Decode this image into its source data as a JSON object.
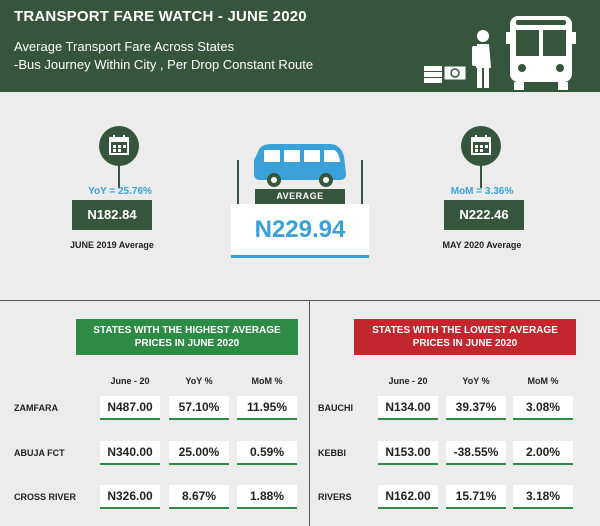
{
  "header": {
    "title": "TRANSPORT FARE WATCH - JUNE 2020",
    "subtitle_line1": "Average Transport Fare Across States",
    "subtitle_line2": "-Bus Journey Within City , Per Drop Constant Route"
  },
  "summary": {
    "average_label": "AVERAGE",
    "average_value": "N229.94",
    "yoy_label": "YoY = 25.76%",
    "yoy_value": "N182.84",
    "yoy_caption": "JUNE 2019 Average",
    "mom_label": "MoM = 3.36%",
    "mom_value": "N222.46",
    "mom_caption": "MAY 2020 Average"
  },
  "highest": {
    "title_line1": "STATES WITH THE HIGHEST AVERAGE",
    "title_line2": "PRICES IN JUNE 2020",
    "columns": [
      "June - 20",
      "YoY %",
      "MoM %"
    ],
    "rows": [
      {
        "state": "ZAMFARA",
        "june": "N487.00",
        "yoy": "57.10%",
        "mom": "11.95%"
      },
      {
        "state": "ABUJA FCT",
        "june": "N340.00",
        "yoy": "25.00%",
        "mom": "0.59%"
      },
      {
        "state": "CROSS RIVER",
        "june": "N326.00",
        "yoy": "8.67%",
        "mom": "1.88%"
      }
    ]
  },
  "lowest": {
    "title_line1": "STATES WITH THE LOWEST AVERAGE",
    "title_line2": "PRICES IN JUNE 2020",
    "columns": [
      "June - 20",
      "YoY %",
      "MoM %"
    ],
    "rows": [
      {
        "state": "BAUCHI",
        "june": "N134.00",
        "yoy": "39.37%",
        "mom": "3.08%"
      },
      {
        "state": "KEBBI",
        "june": "N153.00",
        "yoy": "-38.55%",
        "mom": "2.00%"
      },
      {
        "state": "RIVERS",
        "june": "N162.00",
        "yoy": "15.71%",
        "mom": "3.18%"
      }
    ]
  },
  "icons": [
    "bus-icon",
    "traveler-icon",
    "money-icon",
    "calendar-icon",
    "minibus-icon"
  ],
  "colors": {
    "dark_green": "#36553d",
    "green": "#2e8b45",
    "red": "#c4262e",
    "blue": "#3aa0d8"
  }
}
